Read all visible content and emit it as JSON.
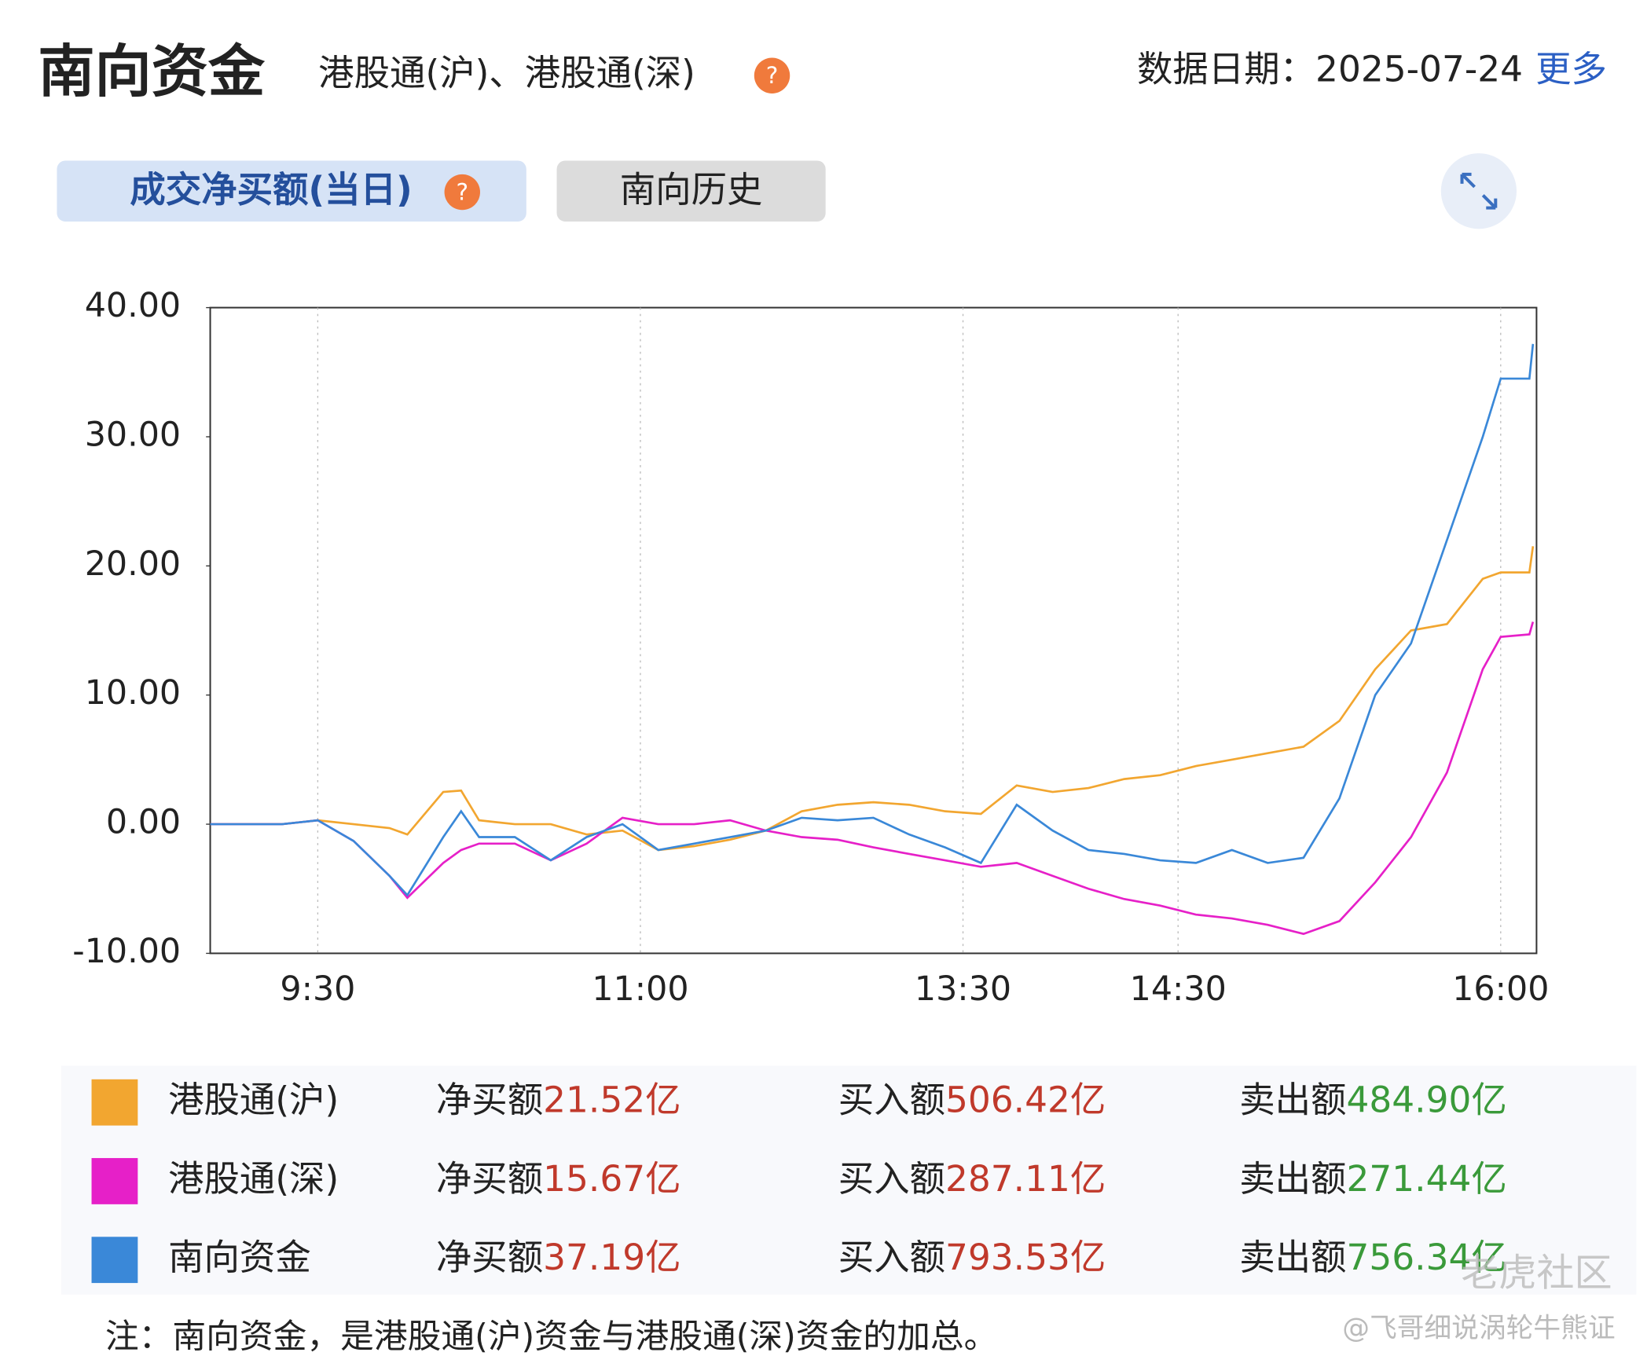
{
  "header": {
    "title": "南向资金",
    "subtitle": "港股通(沪)、港股通(深)",
    "date_label": "数据日期：2025-07-24",
    "more": "更多"
  },
  "tabs": [
    "成交净买额(当日)",
    "南向历史"
  ],
  "chart_data": {
    "type": "line",
    "x": [
      0,
      20,
      30,
      40,
      50,
      55,
      65,
      70,
      75,
      85,
      95,
      105,
      115,
      125,
      135,
      145,
      155,
      165,
      175,
      185,
      195,
      205,
      215,
      225,
      235,
      245,
      255,
      265,
      275,
      285,
      295,
      305,
      315,
      325,
      335,
      345,
      355,
      360,
      368,
      369
    ],
    "series": [
      {
        "name": "港股通(沪)",
        "color": "#f2a630",
        "values": [
          0,
          0,
          0.3,
          0,
          -0.3,
          -0.8,
          2.5,
          2.6,
          0.3,
          0,
          0,
          -0.8,
          -0.5,
          -2,
          -1.7,
          -1.2,
          -0.5,
          1,
          1.5,
          1.7,
          1.5,
          1,
          0.8,
          3,
          2.5,
          2.8,
          3.5,
          3.8,
          4.5,
          5,
          5.5,
          6,
          8,
          12,
          15,
          15.5,
          19,
          19.5,
          19.5,
          21.52
        ]
      },
      {
        "name": "港股通(深)",
        "color": "#e620c8",
        "values": [
          0,
          0,
          0.3,
          -1.3,
          -4,
          -5.7,
          -3,
          -2,
          -1.5,
          -1.5,
          -2.8,
          -1.5,
          0.5,
          0,
          0,
          0.3,
          -0.5,
          -1,
          -1.2,
          -1.8,
          -2.3,
          -2.8,
          -3.3,
          -3,
          -4,
          -5,
          -5.8,
          -6.3,
          -7,
          -7.3,
          -7.8,
          -8.5,
          -7.5,
          -4.5,
          -1,
          4,
          12,
          14.5,
          14.7,
          15.67
        ]
      },
      {
        "name": "南向资金",
        "color": "#3a88d8",
        "values": [
          0,
          0,
          0.3,
          -1.3,
          -4,
          -5.5,
          -1,
          1,
          -1,
          -1,
          -2.8,
          -1,
          0,
          -2,
          -1.5,
          -1,
          -0.5,
          0.5,
          0.3,
          0.5,
          -0.8,
          -1.8,
          -3,
          1.5,
          -0.5,
          -2,
          -2.3,
          -2.8,
          -3,
          -2,
          -3,
          -2.6,
          2,
          10,
          14,
          22,
          30,
          34.5,
          34.5,
          37.19
        ]
      }
    ],
    "xlim": [
      0,
      370
    ],
    "xticks": [
      {
        "value": 30,
        "label": "9:30"
      },
      {
        "value": 120,
        "label": "11:00"
      },
      {
        "value": 210,
        "label": "13:30"
      },
      {
        "value": 270,
        "label": "14:30"
      },
      {
        "value": 360,
        "label": "16:00"
      }
    ],
    "ylim": [
      -10,
      40
    ],
    "yticks": [
      {
        "value": 40,
        "label": "40.00"
      },
      {
        "value": 30,
        "label": "30.00"
      },
      {
        "value": 20,
        "label": "20.00"
      },
      {
        "value": 10,
        "label": "10.00"
      },
      {
        "value": 0,
        "label": "0.00"
      },
      {
        "value": -10,
        "label": "-10.00"
      }
    ],
    "grid": true
  },
  "legend_stats": [
    {
      "net_label": "净买额",
      "net": "21.52亿",
      "buy_label": "买入额",
      "buy": "506.42亿",
      "sell_label": "卖出额",
      "sell": "484.90亿"
    },
    {
      "net_label": "净买额",
      "net": "15.67亿",
      "buy_label": "买入额",
      "buy": "287.11亿",
      "sell_label": "卖出额",
      "sell": "271.44亿"
    },
    {
      "net_label": "净买额",
      "net": "37.19亿",
      "buy_label": "买入额",
      "buy": "793.53亿",
      "sell_label": "卖出额",
      "sell": "756.34亿"
    }
  ],
  "note": "注：南向资金，是港股通(沪)资金与港股通(深)资金的加总。",
  "watermark": "老虎社区",
  "credit": "@飞哥细说涡轮牛熊证"
}
